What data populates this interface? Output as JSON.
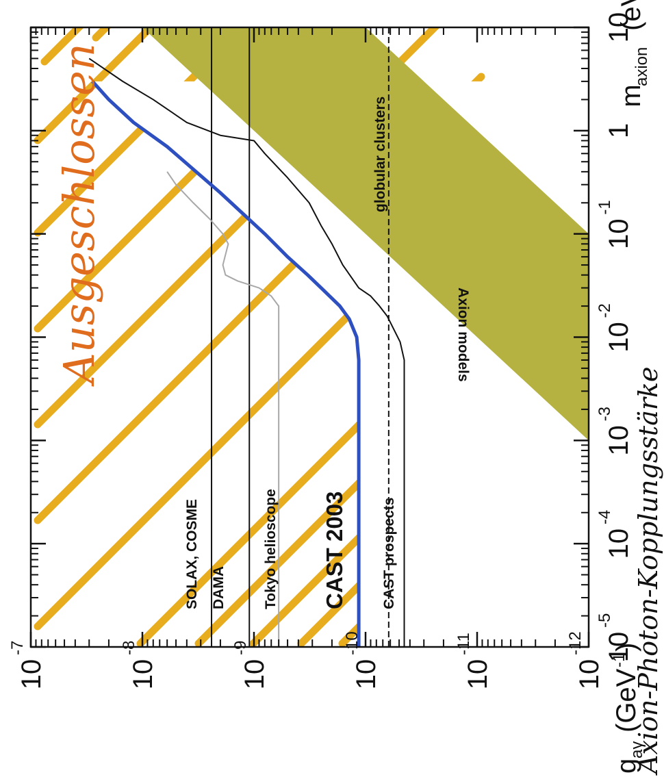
{
  "chart_data": {
    "type": "line",
    "xlabel": "m",
    "xlabel_sub": "axion",
    "xlabel_unit": "(eV)",
    "ylabel": "g",
    "ylabel_sub": "aγ",
    "ylabel_unit": "(GeV",
    "ylabel_unit_exp": "-1",
    "ylabel_unit_close": ")",
    "ylabel_handwritten": "Axion-Photon-Kopplungsstärke",
    "excluded_label": "Ausgeschlossen",
    "x_scale": "log",
    "y_scale": "log",
    "xlim": [
      1e-05,
      10
    ],
    "ylim": [
      1e-12,
      1e-07
    ],
    "x_ticks": [
      {
        "base": "10",
        "exp": "-5",
        "value": 1e-05
      },
      {
        "base": "10",
        "exp": "-4",
        "value": 0.0001
      },
      {
        "base": "10",
        "exp": "-3",
        "value": 0.001
      },
      {
        "base": "10",
        "exp": "-2",
        "value": 0.01
      },
      {
        "base": "10",
        "exp": "-1",
        "value": 0.1
      },
      {
        "base": "1",
        "exp": "",
        "value": 1
      },
      {
        "base": "10",
        "exp": "",
        "value": 10
      }
    ],
    "y_ticks": [
      {
        "base": "10",
        "exp": "-7",
        "value": 1e-07
      },
      {
        "base": "10",
        "exp": "-8",
        "value": 1e-08
      },
      {
        "base": "10",
        "exp": "-9",
        "value": 1e-09
      },
      {
        "base": "10",
        "exp": "-10",
        "value": 1e-10
      },
      {
        "base": "10",
        "exp": "-11",
        "value": 1e-11
      },
      {
        "base": "10",
        "exp": "-12",
        "value": 1e-12
      }
    ],
    "horizontal_limits": [
      {
        "name": "SOLAX, COSME",
        "y": 2.4e-09
      },
      {
        "name": "DAMA",
        "y": 1.1e-09
      },
      {
        "name": "globular clusters",
        "y": 6.2e-11,
        "style": "dashed"
      }
    ],
    "series": [
      {
        "name": "CAST 2003",
        "color": "#2e4fbf",
        "points": [
          [
            1e-05,
            1.15e-10
          ],
          [
            0.003,
            1.15e-10
          ],
          [
            0.006,
            1.15e-10
          ],
          [
            0.01,
            1.2e-10
          ],
          [
            0.015,
            1.4e-10
          ],
          [
            0.02,
            1.7e-10
          ],
          [
            0.03,
            2.5e-10
          ],
          [
            0.04,
            3.3e-10
          ],
          [
            0.06,
            5e-10
          ],
          [
            0.1,
            8e-10
          ],
          [
            0.15,
            1.2e-09
          ],
          [
            0.25,
            2e-09
          ],
          [
            0.4,
            3.3e-09
          ],
          [
            0.7,
            6e-09
          ],
          [
            1.2,
            1.2e-08
          ],
          [
            2,
            2e-08
          ],
          [
            3,
            2.8e-08
          ]
        ]
      },
      {
        "name": "Tokyo helioscope",
        "color": "#a8a8a8",
        "points": [
          [
            1e-05,
            6e-10
          ],
          [
            0.02,
            6e-10
          ],
          [
            0.025,
            7e-10
          ],
          [
            0.03,
            9e-10
          ],
          [
            0.035,
            1.4e-09
          ],
          [
            0.04,
            1.8e-09
          ],
          [
            0.05,
            1.9e-09
          ],
          [
            0.08,
            1.7e-09
          ],
          [
            0.1,
            1.9e-09
          ],
          [
            0.14,
            2.5e-09
          ],
          [
            0.2,
            3.5e-09
          ],
          [
            0.3,
            5e-09
          ],
          [
            0.4,
            6e-09
          ]
        ]
      },
      {
        "name": "CAST prospects",
        "color": "#111111",
        "points": [
          [
            1e-05,
            4.5e-11
          ],
          [
            0.006,
            4.5e-11
          ],
          [
            0.009,
            4.9e-11
          ],
          [
            0.012,
            5.6e-11
          ],
          [
            0.016,
            6.4e-11
          ],
          [
            0.02,
            7.5e-11
          ],
          [
            0.025,
            9e-11
          ],
          [
            0.03,
            1.15e-10
          ],
          [
            0.05,
            1.6e-10
          ],
          [
            0.08,
            2e-10
          ],
          [
            0.12,
            2.5e-10
          ],
          [
            0.2,
            3.2e-10
          ],
          [
            0.35,
            5e-10
          ],
          [
            0.6,
            8e-10
          ],
          [
            0.8,
            1e-09
          ],
          [
            0.9,
            2e-09
          ],
          [
            1.2,
            4e-09
          ],
          [
            2,
            8e-09
          ],
          [
            3,
            1.5e-08
          ],
          [
            5,
            3e-08
          ]
        ]
      }
    ],
    "bands": [
      {
        "name": "Axion models",
        "color": "#b5b241",
        "slope": 1,
        "lower": [
          [
            0.001,
            1e-12
          ],
          [
            10,
            1e-08
          ]
        ],
        "upper": [
          [
            0.1,
            1e-12
          ],
          [
            10,
            1e-10
          ]
        ]
      }
    ],
    "annotations": [
      {
        "text": "SOLAX, COSME"
      },
      {
        "text": "DAMA"
      },
      {
        "text": "Tokyo helioscope"
      },
      {
        "text": "CAST 2003"
      },
      {
        "text": "CAST prospects"
      },
      {
        "text": "globular clusters"
      },
      {
        "text": "Axion models"
      }
    ],
    "hatch_color": "#e7ad1f"
  }
}
